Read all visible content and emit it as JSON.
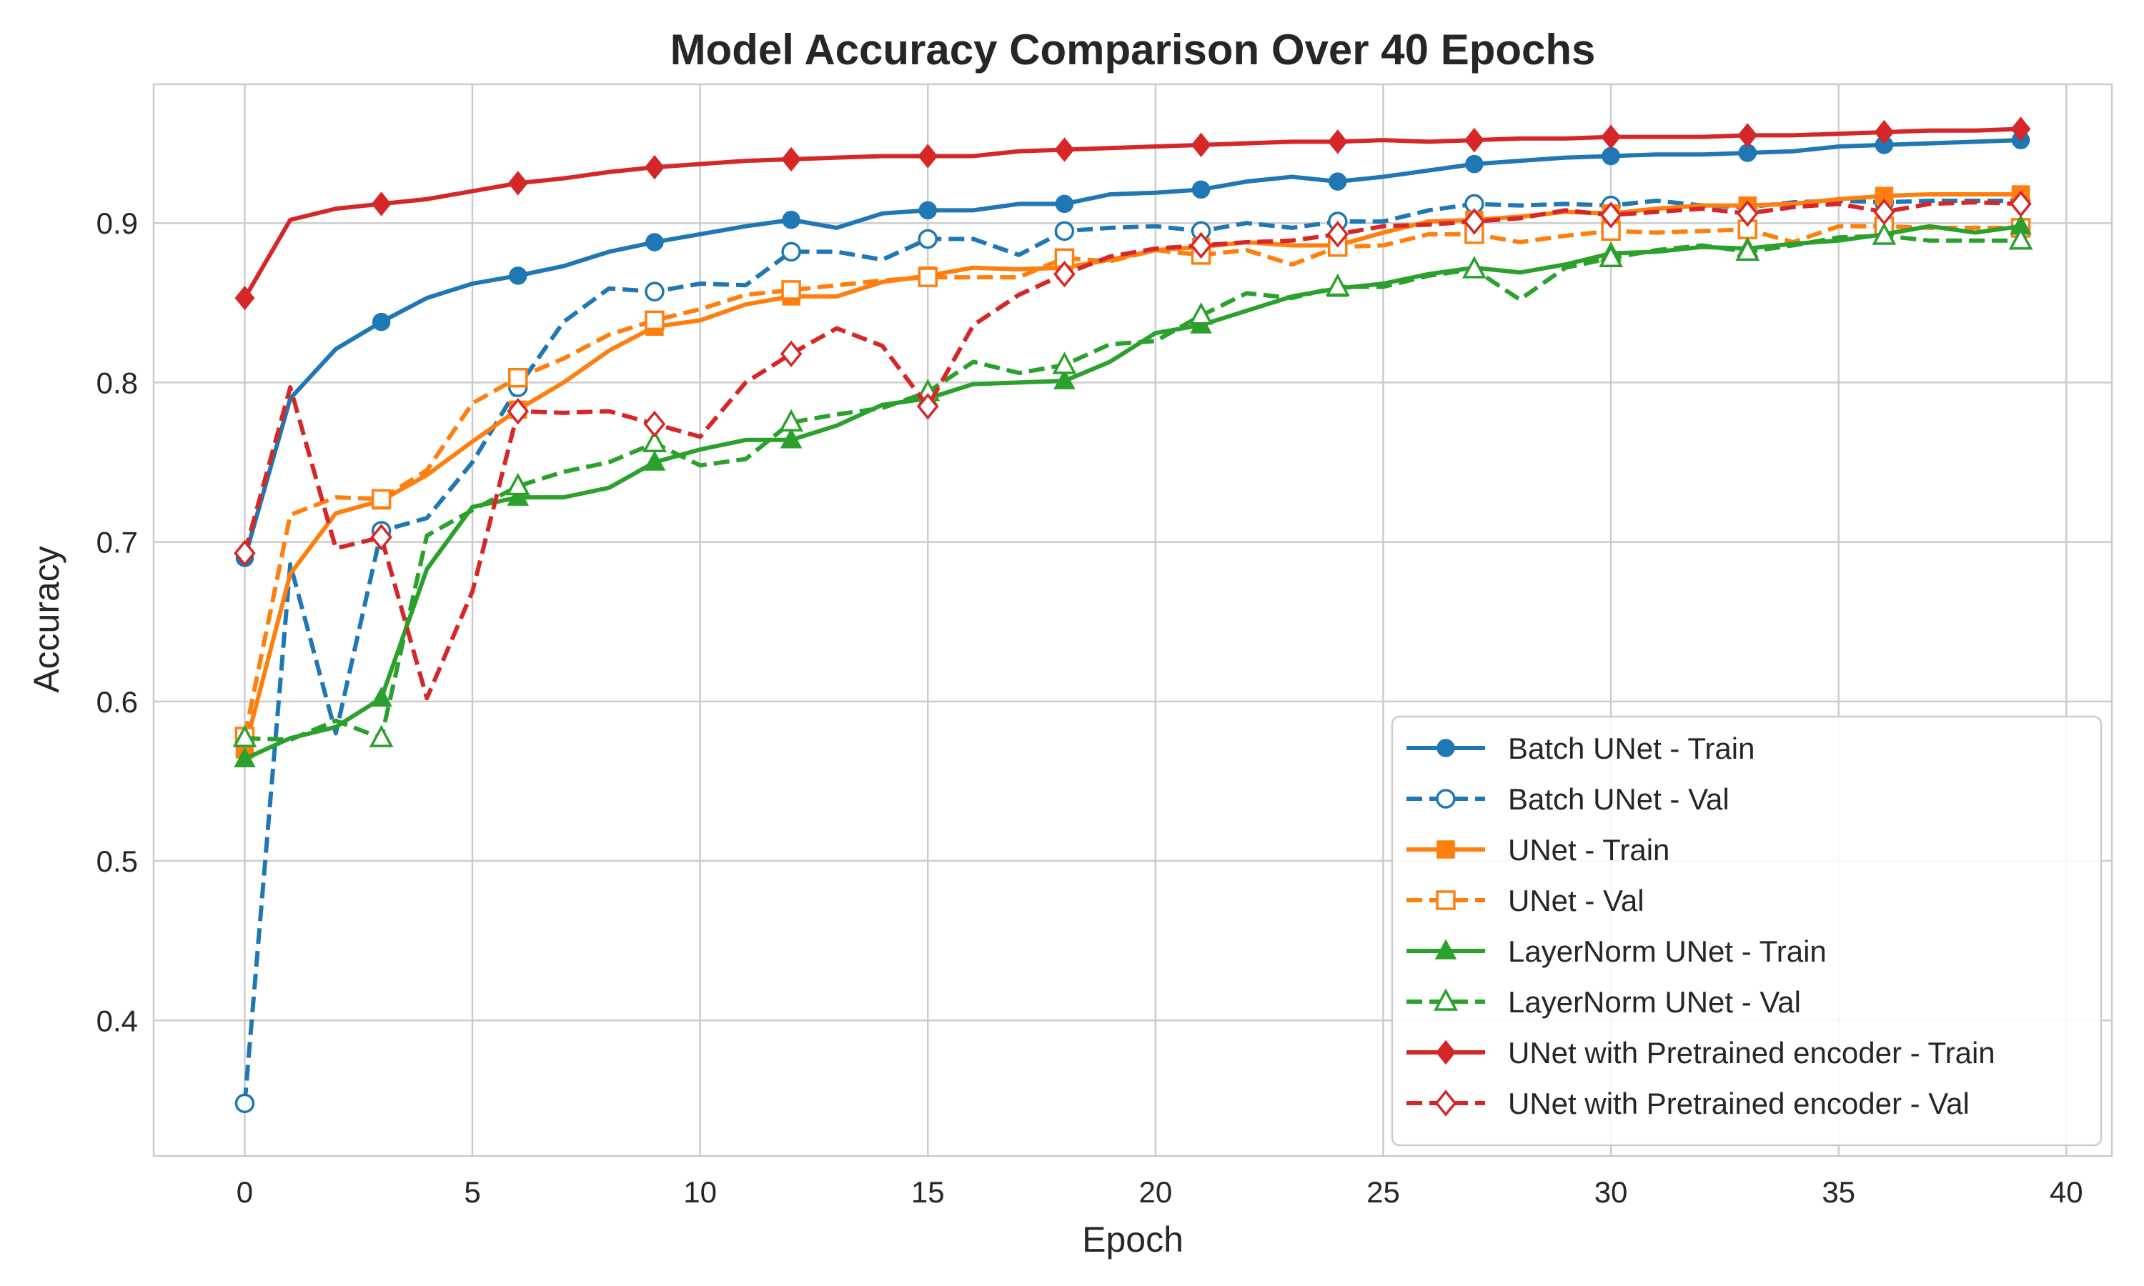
{
  "chart_data": {
    "type": "line",
    "title": "Model Accuracy Comparison Over 40 Epochs",
    "xlabel": "Epoch",
    "ylabel": "Accuracy",
    "xlim": [
      -2,
      41
    ],
    "ylim": [
      0.315,
      0.987
    ],
    "xticks": [
      0,
      5,
      10,
      15,
      20,
      25,
      30,
      35,
      40
    ],
    "yticks": [
      0.4,
      0.5,
      0.6,
      0.7,
      0.8,
      0.9
    ],
    "grid": true,
    "legend_position": "lower-right",
    "x": [
      0,
      1,
      2,
      3,
      4,
      5,
      6,
      7,
      8,
      9,
      10,
      11,
      12,
      13,
      14,
      15,
      16,
      17,
      18,
      19,
      20,
      21,
      22,
      23,
      24,
      25,
      26,
      27,
      28,
      29,
      30,
      31,
      32,
      33,
      34,
      35,
      36,
      37,
      38,
      39
    ],
    "series": [
      {
        "name": "Batch UNet - Train",
        "color": "#1f77b4",
        "linestyle": "solid",
        "marker": "circle",
        "filled": true,
        "values": [
          0.69,
          0.79,
          0.821,
          0.838,
          0.853,
          0.862,
          0.867,
          0.873,
          0.882,
          0.888,
          0.893,
          0.898,
          0.902,
          0.897,
          0.906,
          0.908,
          0.908,
          0.912,
          0.912,
          0.918,
          0.919,
          0.921,
          0.926,
          0.929,
          0.926,
          0.929,
          0.933,
          0.937,
          0.939,
          0.941,
          0.942,
          0.943,
          0.943,
          0.944,
          0.945,
          0.948,
          0.949,
          0.95,
          0.951,
          0.952
        ]
      },
      {
        "name": "Batch UNet - Val",
        "color": "#1f77b4",
        "linestyle": "dashed",
        "marker": "circle",
        "filled": false,
        "values": [
          0.348,
          0.686,
          0.58,
          0.707,
          0.715,
          0.75,
          0.797,
          0.838,
          0.859,
          0.857,
          0.862,
          0.861,
          0.882,
          0.882,
          0.877,
          0.89,
          0.89,
          0.88,
          0.895,
          0.897,
          0.898,
          0.895,
          0.9,
          0.897,
          0.901,
          0.901,
          0.908,
          0.912,
          0.911,
          0.912,
          0.911,
          0.914,
          0.911,
          0.91,
          0.913,
          0.914,
          0.913,
          0.914,
          0.914,
          0.914
        ]
      },
      {
        "name": "UNet - Train",
        "color": "#ff7f0e",
        "linestyle": "solid",
        "marker": "square",
        "filled": true,
        "values": [
          0.57,
          0.68,
          0.718,
          0.726,
          0.742,
          0.763,
          0.783,
          0.8,
          0.82,
          0.835,
          0.839,
          0.849,
          0.854,
          0.854,
          0.863,
          0.867,
          0.872,
          0.871,
          0.872,
          0.877,
          0.883,
          0.885,
          0.888,
          0.886,
          0.886,
          0.894,
          0.901,
          0.902,
          0.904,
          0.907,
          0.906,
          0.909,
          0.911,
          0.911,
          0.912,
          0.915,
          0.917,
          0.918,
          0.918,
          0.918
        ]
      },
      {
        "name": "UNet - Val",
        "color": "#ff7f0e",
        "linestyle": "dashed",
        "marker": "square",
        "filled": false,
        "values": [
          0.578,
          0.717,
          0.728,
          0.727,
          0.745,
          0.787,
          0.803,
          0.815,
          0.83,
          0.839,
          0.846,
          0.855,
          0.858,
          0.861,
          0.864,
          0.866,
          0.866,
          0.866,
          0.878,
          0.876,
          0.883,
          0.88,
          0.883,
          0.874,
          0.885,
          0.886,
          0.893,
          0.893,
          0.888,
          0.892,
          0.895,
          0.894,
          0.895,
          0.896,
          0.888,
          0.898,
          0.898,
          0.897,
          0.897,
          0.897
        ]
      },
      {
        "name": "LayerNorm UNet - Train",
        "color": "#2ca02c",
        "linestyle": "solid",
        "marker": "triangle",
        "filled": true,
        "values": [
          0.564,
          0.577,
          0.584,
          0.602,
          0.683,
          0.722,
          0.728,
          0.728,
          0.734,
          0.75,
          0.758,
          0.764,
          0.764,
          0.773,
          0.786,
          0.79,
          0.799,
          0.8,
          0.801,
          0.813,
          0.831,
          0.836,
          0.845,
          0.854,
          0.859,
          0.862,
          0.868,
          0.872,
          0.869,
          0.874,
          0.881,
          0.882,
          0.885,
          0.884,
          0.887,
          0.889,
          0.893,
          0.898,
          0.894,
          0.898
        ]
      },
      {
        "name": "LayerNorm UNet - Val",
        "color": "#2ca02c",
        "linestyle": "dashed",
        "marker": "triangle",
        "filled": false,
        "values": [
          0.577,
          0.576,
          0.588,
          0.577,
          0.704,
          0.72,
          0.735,
          0.744,
          0.75,
          0.762,
          0.748,
          0.752,
          0.775,
          0.78,
          0.784,
          0.794,
          0.813,
          0.806,
          0.811,
          0.824,
          0.826,
          0.842,
          0.856,
          0.853,
          0.86,
          0.86,
          0.867,
          0.871,
          0.852,
          0.872,
          0.878,
          0.883,
          0.886,
          0.882,
          0.886,
          0.891,
          0.892,
          0.889,
          0.889,
          0.889
        ]
      },
      {
        "name": "UNet with Pretrained encoder - Train",
        "color": "#d62728",
        "linestyle": "solid",
        "marker": "diamond",
        "filled": true,
        "values": [
          0.853,
          0.902,
          0.909,
          0.912,
          0.915,
          0.92,
          0.925,
          0.928,
          0.932,
          0.935,
          0.937,
          0.939,
          0.94,
          0.941,
          0.942,
          0.942,
          0.942,
          0.945,
          0.946,
          0.947,
          0.948,
          0.949,
          0.95,
          0.951,
          0.951,
          0.952,
          0.951,
          0.952,
          0.953,
          0.953,
          0.954,
          0.954,
          0.954,
          0.955,
          0.955,
          0.956,
          0.957,
          0.958,
          0.958,
          0.959
        ]
      },
      {
        "name": "UNet with Pretrained encoder - Val",
        "color": "#d62728",
        "linestyle": "dashed",
        "marker": "diamond",
        "filled": false,
        "values": [
          0.693,
          0.797,
          0.696,
          0.703,
          0.602,
          0.669,
          0.782,
          0.781,
          0.782,
          0.774,
          0.766,
          0.8,
          0.818,
          0.834,
          0.823,
          0.785,
          0.836,
          0.855,
          0.868,
          0.879,
          0.884,
          0.886,
          0.888,
          0.889,
          0.893,
          0.898,
          0.899,
          0.901,
          0.903,
          0.908,
          0.905,
          0.907,
          0.909,
          0.906,
          0.91,
          0.912,
          0.907,
          0.912,
          0.913,
          0.912
        ]
      }
    ]
  }
}
